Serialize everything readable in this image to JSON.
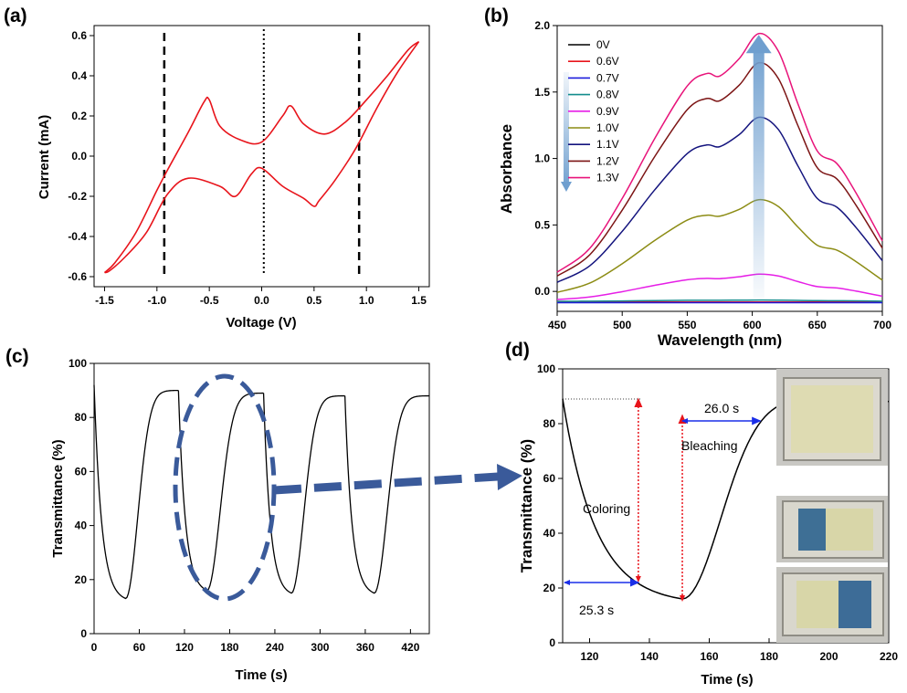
{
  "chart_data": [
    {
      "panel": "(a)",
      "type": "line",
      "xlabel": "Voltage (V)",
      "ylabel": "Current (mA)",
      "xlim": [
        -1.6,
        1.6
      ],
      "ylim": [
        -0.65,
        0.65
      ],
      "xticks": [
        -1.5,
        -1.0,
        -0.5,
        0.0,
        0.5,
        1.0,
        1.5
      ],
      "yticks": [
        -0.6,
        -0.4,
        -0.2,
        0.0,
        0.2,
        0.4,
        0.6
      ],
      "xtick_labels": [
        "-1.5",
        "-1.0",
        "-0.5",
        "0.0",
        "0.5",
        "1.0",
        "1.5"
      ],
      "ytick_labels": [
        "-0.6",
        "-0.4",
        "-0.2",
        "0.0",
        "0.2",
        "0.4",
        "0.6"
      ],
      "series_color": "#e8141b",
      "series": [
        {
          "x": [
            -1.5,
            -1.4,
            -1.2,
            -1.0,
            -0.9,
            -0.7,
            -0.55,
            -0.5,
            -0.4,
            -0.2,
            0.0,
            0.2,
            0.28,
            0.4,
            0.6,
            0.8,
            1.0,
            1.2,
            1.4,
            1.5
          ],
          "y": [
            -0.58,
            -0.53,
            -0.38,
            -0.17,
            -0.07,
            0.12,
            0.27,
            0.28,
            0.15,
            0.08,
            0.07,
            0.2,
            0.25,
            0.16,
            0.11,
            0.17,
            0.28,
            0.4,
            0.53,
            0.57
          ]
        },
        {
          "x": [
            1.5,
            1.3,
            1.1,
            0.9,
            0.7,
            0.55,
            0.5,
            0.4,
            0.2,
            0.0,
            -0.1,
            -0.25,
            -0.4,
            -0.7,
            -0.9,
            -1.1,
            -1.3,
            -1.45,
            -1.5
          ],
          "y": [
            0.57,
            0.42,
            0.24,
            0.04,
            -0.12,
            -0.22,
            -0.25,
            -0.21,
            -0.15,
            -0.06,
            -0.09,
            -0.2,
            -0.15,
            -0.11,
            -0.19,
            -0.38,
            -0.5,
            -0.57,
            -0.58
          ]
        }
      ],
      "dashed_lines_x": [
        -0.93,
        0.93
      ],
      "dotted_line_x": 0.02
    },
    {
      "panel": "(b)",
      "type": "line",
      "xlabel": "Wavelength (nm)",
      "ylabel": "Absorbance",
      "xlim": [
        450,
        700
      ],
      "ylim": [
        -0.15,
        2.0
      ],
      "xticks": [
        450,
        500,
        550,
        600,
        650,
        700
      ],
      "yticks": [
        0.0,
        0.5,
        1.0,
        1.5,
        2.0
      ],
      "xtick_labels": [
        "450",
        "500",
        "550",
        "600",
        "650",
        "700"
      ],
      "ytick_labels": [
        "0.0",
        "0.5",
        "1.0",
        "1.5",
        "2.0"
      ],
      "x": [
        450,
        475,
        500,
        525,
        550,
        565,
        575,
        590,
        605,
        620,
        635,
        650,
        665,
        680,
        700
      ],
      "peak_factor": [
        0.045,
        0.14,
        0.34,
        0.58,
        0.79,
        0.84,
        0.83,
        0.9,
        1.0,
        0.93,
        0.72,
        0.53,
        0.48,
        0.36,
        0.17
      ],
      "series": [
        {
          "name": "0V",
          "color": "#000000",
          "amp": 0.0,
          "base": -0.08
        },
        {
          "name": "0.6V",
          "color": "#e8141b",
          "amp": 0.0,
          "base": -0.08
        },
        {
          "name": "0.7V",
          "color": "#1c1cdc",
          "amp": 0.0,
          "base": -0.085
        },
        {
          "name": "0.8V",
          "color": "#128c8c",
          "amp": 0.01,
          "base": -0.075
        },
        {
          "name": "0.9V",
          "color": "#e61ee6",
          "amp": 0.2,
          "base": -0.07
        },
        {
          "name": "1.0V",
          "color": "#8c8c14",
          "amp": 0.73,
          "base": -0.04
        },
        {
          "name": "1.1V",
          "color": "#14147e",
          "amp": 1.3,
          "base": 0.01
        },
        {
          "name": "1.2V",
          "color": "#7c1414",
          "amp": 1.68,
          "base": 0.04
        },
        {
          "name": "1.3V",
          "color": "#e8147a",
          "amp": 1.88,
          "base": 0.06
        }
      ],
      "arrow_color": "#6f9fcf",
      "arrow_up_x": 605,
      "arrow_up_from": -0.05,
      "arrow_up_to": 1.93,
      "arrow_down_x": 457,
      "arrow_down_from": 1.65,
      "arrow_down_to": 0.75
    },
    {
      "panel": "(c)",
      "type": "line",
      "xlabel": "Time (s)",
      "ylabel": "Transmittance (%)",
      "xlim": [
        0,
        445
      ],
      "ylim": [
        0,
        100
      ],
      "xticks": [
        0,
        60,
        120,
        180,
        240,
        300,
        360,
        420
      ],
      "yticks": [
        0,
        20,
        40,
        60,
        80,
        100
      ],
      "xtick_labels": [
        "0",
        "60",
        "120",
        "180",
        "240",
        "300",
        "360",
        "420"
      ],
      "ytick_labels": [
        "0",
        "20",
        "40",
        "60",
        "80",
        "100"
      ],
      "cycles": [
        {
          "color_start": 0,
          "bleach_start": 42,
          "bleach_end": 112,
          "t_min": 13,
          "t_max": 90
        },
        {
          "color_start": 112,
          "bleach_start": 150,
          "bleach_end": 225,
          "t_min": 16,
          "t_max": 89
        },
        {
          "color_start": 225,
          "bleach_start": 262,
          "bleach_end": 333,
          "t_min": 15,
          "t_max": 88
        },
        {
          "color_start": 333,
          "bleach_start": 372,
          "bleach_end": 445,
          "t_min": 15,
          "t_max": 88
        }
      ],
      "start_value": 92,
      "highlight_ellipse_color": "#3a5a9a"
    },
    {
      "panel": "(d)",
      "type": "line",
      "xlabel": "Time (s)",
      "ylabel": "Transmittance (%)",
      "xlim": [
        111,
        220
      ],
      "ylim": [
        0,
        100
      ],
      "xticks": [
        120,
        140,
        160,
        180,
        200,
        220
      ],
      "yticks": [
        0,
        20,
        40,
        60,
        80,
        100
      ],
      "xtick_labels": [
        "120",
        "140",
        "160",
        "180",
        "200",
        "220"
      ],
      "ytick_labels": [
        "0",
        "20",
        "40",
        "60",
        "80",
        "100"
      ],
      "coloring": {
        "t_start": 111,
        "t_end": 151,
        "v_start": 89,
        "v_end": 16,
        "label": "Coloring",
        "time_label": "25.3 s"
      },
      "bleaching": {
        "t_start": 151,
        "t_end": 220,
        "v_start": 16,
        "v_end": 88,
        "label": "Bleaching",
        "time_label": "26.0 s"
      },
      "marker_90_coloring_t": 136.3,
      "marker_90_bleaching_t": 177.0,
      "arrow_red": "#e8141b",
      "arrow_blue": "#1a2ee8"
    }
  ]
}
